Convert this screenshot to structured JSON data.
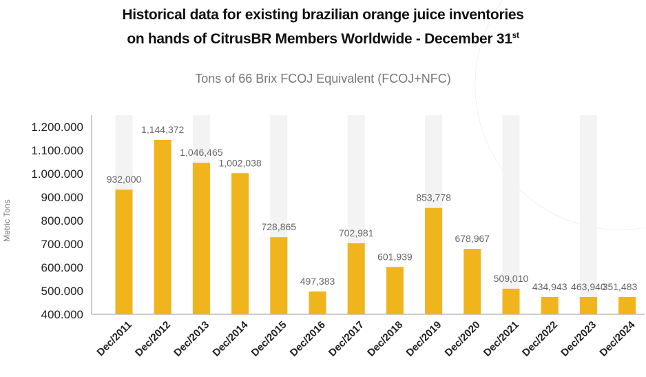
{
  "title_line1": "Historical data for existing brazilian orange juice inventories",
  "title_line2": "on hands of CitrusBR Members Worldwide - December 31",
  "title_sup": "st",
  "subtitle": "Tons of 66 Brix FCOJ Equivalent (FCOJ+NFC)",
  "chart_data": {
    "type": "bar",
    "ylabel": "Metric Tons",
    "xlabel": "",
    "ylim": [
      400000,
      1200000
    ],
    "yticks": [
      400000,
      500000,
      600000,
      700000,
      800000,
      900000,
      1000000,
      1100000,
      1200000
    ],
    "ytick_labels": [
      "400.000",
      "500.000",
      "600.000",
      "700.000",
      "800.000",
      "900.000",
      "1.000.000",
      "1.100.000",
      "1.200.000"
    ],
    "categories": [
      "Dec/2011",
      "Dec/2012",
      "Dec/2013",
      "Dec/2014",
      "Dec/2015",
      "Dec/2016",
      "Dec/2017",
      "Dec/2018",
      "Dec/2019",
      "Dec/2020",
      "Dec/2021",
      "Dec/2022",
      "Dec/2023",
      "Dec/2024"
    ],
    "values": [
      932000,
      1144372,
      1046465,
      1002038,
      728865,
      497383,
      702981,
      601939,
      853778,
      678967,
      509010,
      434943,
      463940,
      351483
    ],
    "data_labels": [
      "932,000",
      "1,144,372",
      "1,046,465",
      "1,002,038",
      "728,865",
      "497,383",
      "702,981",
      "601,939",
      "853,778",
      "678,967",
      "509,010",
      "434,943",
      "463,940",
      "351,483"
    ],
    "grid": false,
    "bar_color": "#F0B41C",
    "band_color": "#F3F3F3"
  }
}
